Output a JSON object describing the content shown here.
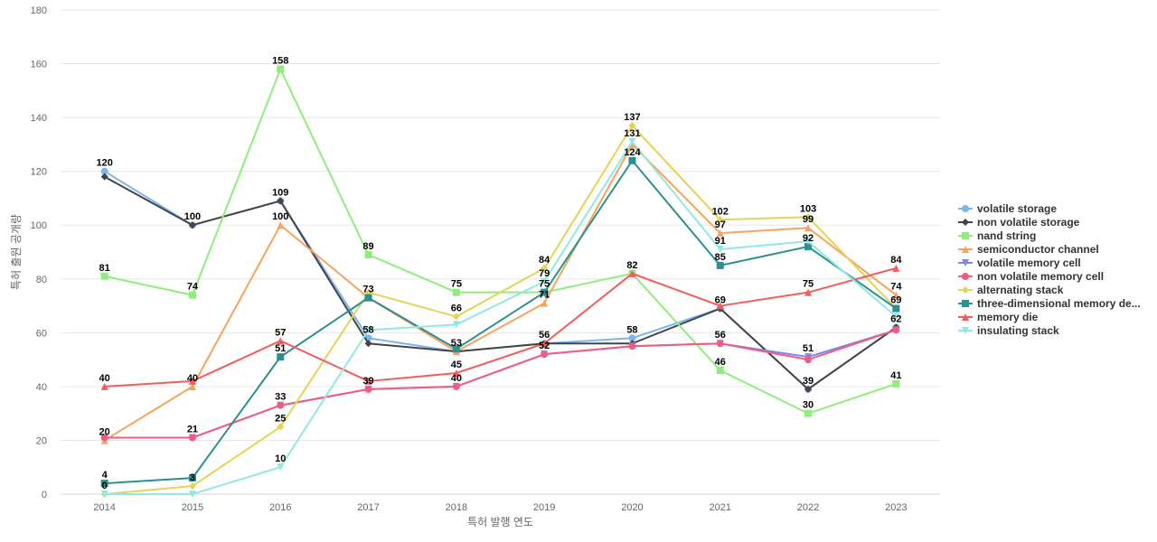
{
  "chart_data": {
    "type": "line",
    "title": "",
    "xlabel": "특허 발행 연도",
    "ylabel": "특허 출원 공개량",
    "ylim": [
      0,
      180
    ],
    "yticks": [
      0,
      20,
      40,
      60,
      80,
      100,
      120,
      140,
      160,
      180
    ],
    "grid": true,
    "legend_position": "right",
    "categories": [
      "2014",
      "2015",
      "2016",
      "2017",
      "2018",
      "2019",
      "2020",
      "2021",
      "2022",
      "2023"
    ],
    "series": [
      {
        "name": "volatile storage",
        "legend_label": "volatile storage",
        "color": "#7cb5ec",
        "marker": "circle",
        "values": [
          120,
          100,
          109,
          58,
          53,
          56,
          58,
          69,
          39,
          62
        ],
        "labeled": false
      },
      {
        "name": "non volatile storage",
        "legend_label": "non volatile storage",
        "color": "#434348",
        "marker": "diamond",
        "values": [
          118,
          100,
          109,
          56,
          53,
          56,
          56,
          69,
          39,
          62
        ],
        "labeled": true
      },
      {
        "name": "nand string",
        "legend_label": "nand string",
        "color": "#90ed7d",
        "marker": "square",
        "values": [
          81,
          74,
          158,
          89,
          75,
          75,
          82,
          46,
          30,
          41
        ],
        "labeled": true
      },
      {
        "name": "semiconductor channel",
        "legend_label": "semiconductor channel",
        "color": "#f7a35c",
        "marker": "triangle",
        "values": [
          20,
          40,
          100,
          73,
          53,
          71,
          130,
          97,
          99,
          74
        ],
        "labeled": true
      },
      {
        "name": "volatile memory cell",
        "legend_label": "volatile memory cell",
        "color": "#8085e9",
        "marker": "triangle-down",
        "values": [
          21,
          21,
          33,
          39,
          40,
          52,
          55,
          56,
          51,
          61
        ],
        "labeled": false
      },
      {
        "name": "non volatile memory cell",
        "legend_label": "non volatile memory cell",
        "color": "#f15c80",
        "marker": "circle",
        "values": [
          21,
          21,
          33,
          39,
          40,
          52,
          55,
          56,
          50,
          61
        ],
        "labeled": true
      },
      {
        "name": "alternating stack",
        "legend_label": "alternating stack",
        "color": "#e4d354",
        "marker": "diamond",
        "values": [
          0,
          3,
          25,
          75,
          66,
          84,
          137,
          102,
          103,
          69
        ],
        "labeled": true
      },
      {
        "name": "three-dimensional memory device",
        "legend_label": "three-dimensional memory de...",
        "color": "#2b908f",
        "marker": "square",
        "values": [
          4,
          6,
          51,
          73,
          54,
          75,
          124,
          85,
          92,
          69
        ],
        "labeled": true
      },
      {
        "name": "memory die",
        "legend_label": "memory die",
        "color": "#f45b5b",
        "marker": "triangle",
        "values": [
          40,
          42,
          57,
          42,
          45,
          56,
          82,
          70,
          75,
          84
        ],
        "labeled": true
      },
      {
        "name": "insulating stack",
        "legend_label": "insulating stack",
        "color": "#91e8e1",
        "marker": "triangle-down",
        "values": [
          0,
          0,
          10,
          61,
          63,
          79,
          131,
          91,
          94,
          66
        ],
        "labeled": true
      }
    ],
    "data_labels": [
      {
        "category": "2014",
        "value": 120,
        "text": "120"
      },
      {
        "category": "2014",
        "value": 81,
        "text": "81"
      },
      {
        "category": "2014",
        "value": 40,
        "text": "40"
      },
      {
        "category": "2014",
        "value": 20,
        "text": "20"
      },
      {
        "category": "2014",
        "value": 4,
        "text": "4"
      },
      {
        "category": "2014",
        "value": 0,
        "text": "0"
      },
      {
        "category": "2015",
        "value": 100,
        "text": "100"
      },
      {
        "category": "2015",
        "value": 74,
        "text": "74"
      },
      {
        "category": "2015",
        "value": 40,
        "text": "40"
      },
      {
        "category": "2015",
        "value": 21,
        "text": "21"
      },
      {
        "category": "2015",
        "value": 3,
        "text": "3"
      },
      {
        "category": "2016",
        "value": 158,
        "text": "158"
      },
      {
        "category": "2016",
        "value": 109,
        "text": "109"
      },
      {
        "category": "2016",
        "value": 100,
        "text": "100"
      },
      {
        "category": "2016",
        "value": 57,
        "text": "57"
      },
      {
        "category": "2016",
        "value": 51,
        "text": "51"
      },
      {
        "category": "2016",
        "value": 33,
        "text": "33"
      },
      {
        "category": "2016",
        "value": 25,
        "text": "25"
      },
      {
        "category": "2016",
        "value": 10,
        "text": "10"
      },
      {
        "category": "2017",
        "value": 89,
        "text": "89"
      },
      {
        "category": "2017",
        "value": 73,
        "text": "73"
      },
      {
        "category": "2017",
        "value": 58,
        "text": "58"
      },
      {
        "category": "2017",
        "value": 39,
        "text": "39"
      },
      {
        "category": "2018",
        "value": 75,
        "text": "75"
      },
      {
        "category": "2018",
        "value": 66,
        "text": "66"
      },
      {
        "category": "2018",
        "value": 53,
        "text": "53"
      },
      {
        "category": "2018",
        "value": 45,
        "text": "45"
      },
      {
        "category": "2018",
        "value": 40,
        "text": "40"
      },
      {
        "category": "2019",
        "value": 84,
        "text": "84"
      },
      {
        "category": "2019",
        "value": 79,
        "text": "79"
      },
      {
        "category": "2019",
        "value": 75,
        "text": "75"
      },
      {
        "category": "2019",
        "value": 71,
        "text": "71"
      },
      {
        "category": "2019",
        "value": 56,
        "text": "56"
      },
      {
        "category": "2019",
        "value": 52,
        "text": "52"
      },
      {
        "category": "2020",
        "value": 137,
        "text": "137"
      },
      {
        "category": "2020",
        "value": 131,
        "text": "131"
      },
      {
        "category": "2020",
        "value": 124,
        "text": "124"
      },
      {
        "category": "2020",
        "value": 82,
        "text": "82"
      },
      {
        "category": "2020",
        "value": 58,
        "text": "58"
      },
      {
        "category": "2021",
        "value": 102,
        "text": "102"
      },
      {
        "category": "2021",
        "value": 97,
        "text": "97"
      },
      {
        "category": "2021",
        "value": 91,
        "text": "91"
      },
      {
        "category": "2021",
        "value": 85,
        "text": "85"
      },
      {
        "category": "2021",
        "value": 69,
        "text": "69"
      },
      {
        "category": "2021",
        "value": 56,
        "text": "56"
      },
      {
        "category": "2021",
        "value": 46,
        "text": "46"
      },
      {
        "category": "2022",
        "value": 103,
        "text": "103"
      },
      {
        "category": "2022",
        "value": 99,
        "text": "99"
      },
      {
        "category": "2022",
        "value": 92,
        "text": "92"
      },
      {
        "category": "2022",
        "value": 75,
        "text": "75"
      },
      {
        "category": "2022",
        "value": 51,
        "text": "51"
      },
      {
        "category": "2022",
        "value": 39,
        "text": "39"
      },
      {
        "category": "2022",
        "value": 30,
        "text": "30"
      },
      {
        "category": "2023",
        "value": 84,
        "text": "84"
      },
      {
        "category": "2023",
        "value": 74,
        "text": "74"
      },
      {
        "category": "2023",
        "value": 69,
        "text": "69"
      },
      {
        "category": "2023",
        "value": 62,
        "text": "62"
      },
      {
        "category": "2023",
        "value": 41,
        "text": "41"
      }
    ]
  }
}
